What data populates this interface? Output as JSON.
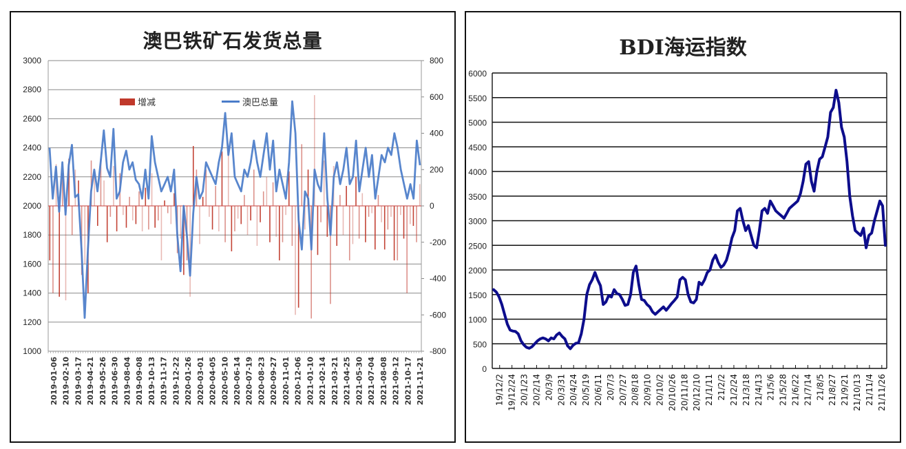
{
  "left_chart": {
    "title": "澳巴铁矿石发货总量",
    "legend": [
      {
        "label": "增减",
        "type": "bar",
        "color": "#c0392b"
      },
      {
        "label": "澳巴总量",
        "type": "line",
        "color": "#4a7cc9"
      }
    ]
  },
  "right_chart": {
    "title": "BDI海运指数"
  },
  "chart_data": [
    {
      "type": "bar+line",
      "title": "澳巴铁矿石发货总量",
      "xlabel": "",
      "ylabel_left": "",
      "ylabel_right": "",
      "ylim_left": [
        1000,
        3000
      ],
      "ylim_right": [
        -800,
        800
      ],
      "yticks_left": [
        1000,
        1200,
        1400,
        1600,
        1800,
        2000,
        2200,
        2400,
        2600,
        2800,
        3000
      ],
      "ytick_labels_left": [
        "1000",
        "1200",
        "1400",
        "1600",
        "1800",
        "2000",
        "2200",
        "2400",
        "2600",
        "2800",
        "3000"
      ],
      "yticks_right": [
        -800,
        -600,
        -400,
        -200,
        0,
        200,
        400,
        600,
        800
      ],
      "grid": true,
      "legend_position": "top-inside",
      "x_tick_labels": [
        "2019-01-06",
        "2019-02-10",
        "2019-03-17",
        "2019-04-21",
        "2019-05-26",
        "2019-06-30",
        "2019-08-04",
        "2019-09-08",
        "2019-10-13",
        "2019-11-17",
        "2019-12-22",
        "2020-01-26",
        "2020-03-01",
        "2020-04-05",
        "2020-05-10",
        "2020-06-14",
        "2020-07-19",
        "2020-08-23",
        "2020-09-27",
        "2020-11-01",
        "2020-12-06",
        "2021-01-10",
        "2021-02-14",
        "2021-03-21",
        "2021-04-25",
        "2021-05-30",
        "2021-07-04",
        "2021-08-08",
        "2021-09-12",
        "2021-10-17",
        "2021-11-21"
      ],
      "series": [
        {
          "name": "澳巴总量",
          "type": "line",
          "axis": "left",
          "color": "#4a7cc9",
          "values": [
            2400,
            2050,
            2270,
            1960,
            2300,
            1940,
            2280,
            2420,
            2060,
            2080,
            1700,
            1230,
            1700,
            2100,
            2250,
            2100,
            2300,
            2520,
            2260,
            2200,
            2530,
            2050,
            2100,
            2300,
            2380,
            2250,
            2300,
            2180,
            2150,
            2050,
            2250,
            2050,
            2480,
            2300,
            2200,
            2100,
            2150,
            2200,
            2100,
            2250,
            1800,
            1550,
            2000,
            1800,
            1520,
            1950,
            2200,
            2050,
            2100,
            2300,
            2250,
            2200,
            2150,
            2300,
            2400,
            2640,
            2350,
            2500,
            2200,
            2150,
            2100,
            2250,
            2200,
            2300,
            2450,
            2300,
            2200,
            2350,
            2500,
            2250,
            2450,
            2100,
            2250,
            2150,
            2050,
            2300,
            2720,
            2500,
            1900,
            1700,
            2100,
            2050,
            1700,
            2250,
            2150,
            2100,
            2500,
            2050,
            1800,
            2200,
            2300,
            2150,
            2250,
            2400,
            2150,
            2200,
            2450,
            2100,
            2250,
            2400,
            2200,
            2350,
            2050,
            2200,
            2350,
            2300,
            2400,
            2350,
            2500,
            2400,
            2250,
            2150,
            2050,
            2150,
            2050,
            2450,
            2280
          ]
        },
        {
          "name": "增减",
          "type": "bar",
          "axis": "right",
          "color": "#c0392b",
          "values": [
            -300,
            -480,
            230,
            -500,
            180,
            -520,
            260,
            -160,
            200,
            140,
            -380,
            -320,
            -480,
            250,
            190,
            -110,
            260,
            140,
            -200,
            -60,
            220,
            -140,
            180,
            -50,
            -120,
            50,
            -80,
            -100,
            80,
            -140,
            100,
            -130,
            180,
            -120,
            -80,
            -300,
            30,
            -40,
            -100,
            70,
            -260,
            -180,
            -380,
            -300,
            -500,
            330,
            200,
            -210,
            50,
            200,
            -60,
            -130,
            110,
            -140,
            300,
            -200,
            330,
            -250,
            -140,
            -70,
            -100,
            60,
            -160,
            -80,
            200,
            -220,
            -90,
            80,
            160,
            -200,
            130,
            -170,
            -300,
            -200,
            -50,
            190,
            -220,
            -600,
            -560,
            340,
            -130,
            200,
            -620,
            610,
            -270,
            -90,
            250,
            -170,
            -540,
            220,
            -220,
            60,
            -160,
            110,
            -300,
            -210,
            160,
            -180,
            70,
            -200,
            -60,
            -40,
            -240,
            60,
            -90,
            -240,
            -130,
            -60,
            -300,
            -300,
            -50,
            -180,
            -480,
            -100,
            -110,
            -200,
            120
          ]
        }
      ]
    },
    {
      "type": "line",
      "title": "BDI海运指数",
      "xlabel": "",
      "ylabel": "",
      "ylim": [
        0,
        6000
      ],
      "yticks": [
        0,
        500,
        1000,
        1500,
        2000,
        2500,
        3000,
        3500,
        4000,
        4500,
        5000,
        5500,
        6000
      ],
      "grid": true,
      "legend_position": "none",
      "x_tick_labels": [
        "19/12/2",
        "19/12/24",
        "20/1/23",
        "20/2/14",
        "20/3/9",
        "20/3/31",
        "20/4/24",
        "20/5/19",
        "20/6/11",
        "20/7/3",
        "20/7/27",
        "20/8/18",
        "20/9/10",
        "20/10/2",
        "20/10/26",
        "20/11/18",
        "20/12/10",
        "21/1/11",
        "21/2/2",
        "21/2/24",
        "21/3/18",
        "21/4/13",
        "21/5/6",
        "21/5/28",
        "21/6/22",
        "21/7/14",
        "21/8/5",
        "21/8/27",
        "21/9/21",
        "21/10/13",
        "21/11/4",
        "21/11/26"
      ],
      "series": [
        {
          "name": "BDI",
          "color": "#0d0d8c",
          "values": [
            1600,
            1550,
            1450,
            1300,
            1100,
            900,
            780,
            760,
            750,
            700,
            560,
            480,
            430,
            410,
            440,
            500,
            560,
            600,
            620,
            600,
            560,
            620,
            600,
            680,
            720,
            650,
            600,
            460,
            400,
            470,
            510,
            520,
            700,
            1000,
            1500,
            1700,
            1800,
            1950,
            1800,
            1680,
            1300,
            1350,
            1480,
            1450,
            1600,
            1520,
            1500,
            1400,
            1280,
            1300,
            1500,
            1950,
            2080,
            1700,
            1400,
            1380,
            1300,
            1250,
            1150,
            1100,
            1150,
            1200,
            1250,
            1180,
            1250,
            1320,
            1380,
            1450,
            1800,
            1850,
            1800,
            1500,
            1350,
            1330,
            1400,
            1750,
            1700,
            1800,
            1950,
            2000,
            2200,
            2300,
            2150,
            2050,
            2100,
            2200,
            2400,
            2650,
            2800,
            3200,
            3250,
            3000,
            2800,
            2900,
            2700,
            2500,
            2450,
            2800,
            3200,
            3250,
            3150,
            3400,
            3300,
            3200,
            3150,
            3100,
            3050,
            3150,
            3250,
            3300,
            3350,
            3400,
            3550,
            3800,
            4150,
            4200,
            3800,
            3600,
            4000,
            4250,
            4300,
            4500,
            4700,
            5200,
            5300,
            5650,
            5400,
            4900,
            4700,
            4200,
            3500,
            3100,
            2800,
            2750,
            2700,
            2850,
            2450,
            2700,
            2750,
            3000,
            3200,
            3400,
            3300,
            2500
          ]
        }
      ]
    }
  ]
}
